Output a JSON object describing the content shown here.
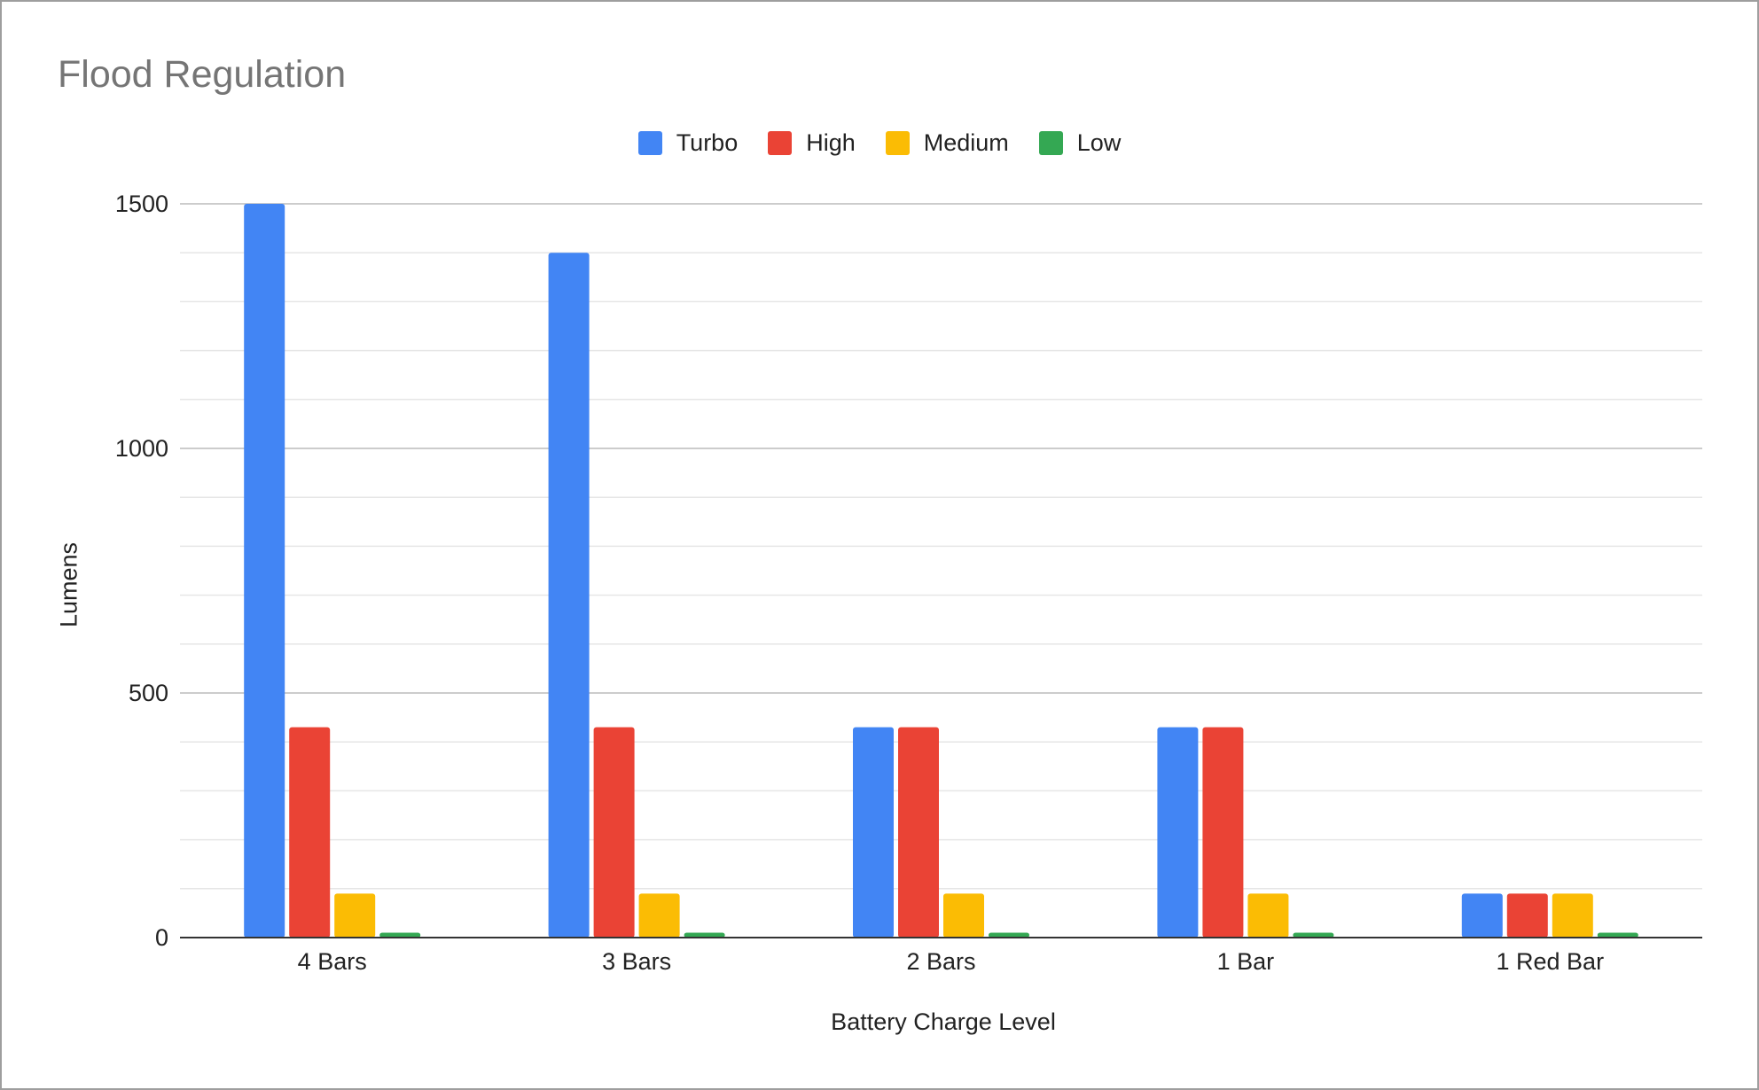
{
  "chart_data": {
    "type": "bar",
    "title": "Flood Regulation",
    "xlabel": "Battery Charge Level",
    "ylabel": "Lumens",
    "ylim": [
      0,
      1500
    ],
    "yticks": [
      0,
      500,
      1000,
      1500
    ],
    "grid": true,
    "legend_position": "top-center",
    "categories": [
      "4 Bars",
      "3 Bars",
      "2 Bars",
      "1 Bar",
      "1 Red Bar"
    ],
    "series": [
      {
        "name": "Turbo",
        "color": "#4285f4",
        "values": [
          1500,
          1400,
          430,
          430,
          90
        ]
      },
      {
        "name": "High",
        "color": "#ea4335",
        "values": [
          430,
          430,
          430,
          430,
          90
        ]
      },
      {
        "name": "Medium",
        "color": "#fbbc04",
        "values": [
          90,
          90,
          90,
          90,
          90
        ]
      },
      {
        "name": "Low",
        "color": "#34a853",
        "values": [
          10,
          10,
          10,
          10,
          10
        ]
      }
    ]
  }
}
